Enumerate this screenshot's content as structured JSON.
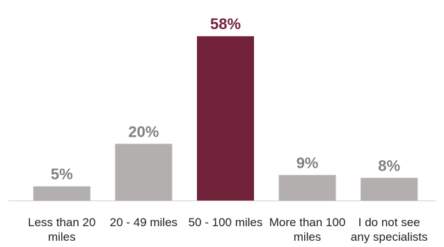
{
  "chart_data": {
    "type": "bar",
    "categories": [
      [
        "Less than 20",
        "miles"
      ],
      [
        "20 - 49 miles"
      ],
      [
        "50 - 100 miles"
      ],
      [
        "More than 100",
        "miles"
      ],
      [
        "I do not see",
        "any specialists"
      ]
    ],
    "values": [
      5,
      20,
      58,
      9,
      8
    ],
    "value_labels": [
      "5%",
      "20%",
      "58%",
      "9%",
      "8%"
    ],
    "highlight_index": 2,
    "ylim": [
      0,
      60
    ],
    "grid": false,
    "legend": "none",
    "title": "",
    "xlabel": "",
    "ylabel": ""
  },
  "colors": {
    "bar_default": "#b3afae",
    "bar_highlight": "#722239",
    "label_default": "#808080",
    "label_highlight": "#722239",
    "axis_line": "#cfcfcf"
  }
}
